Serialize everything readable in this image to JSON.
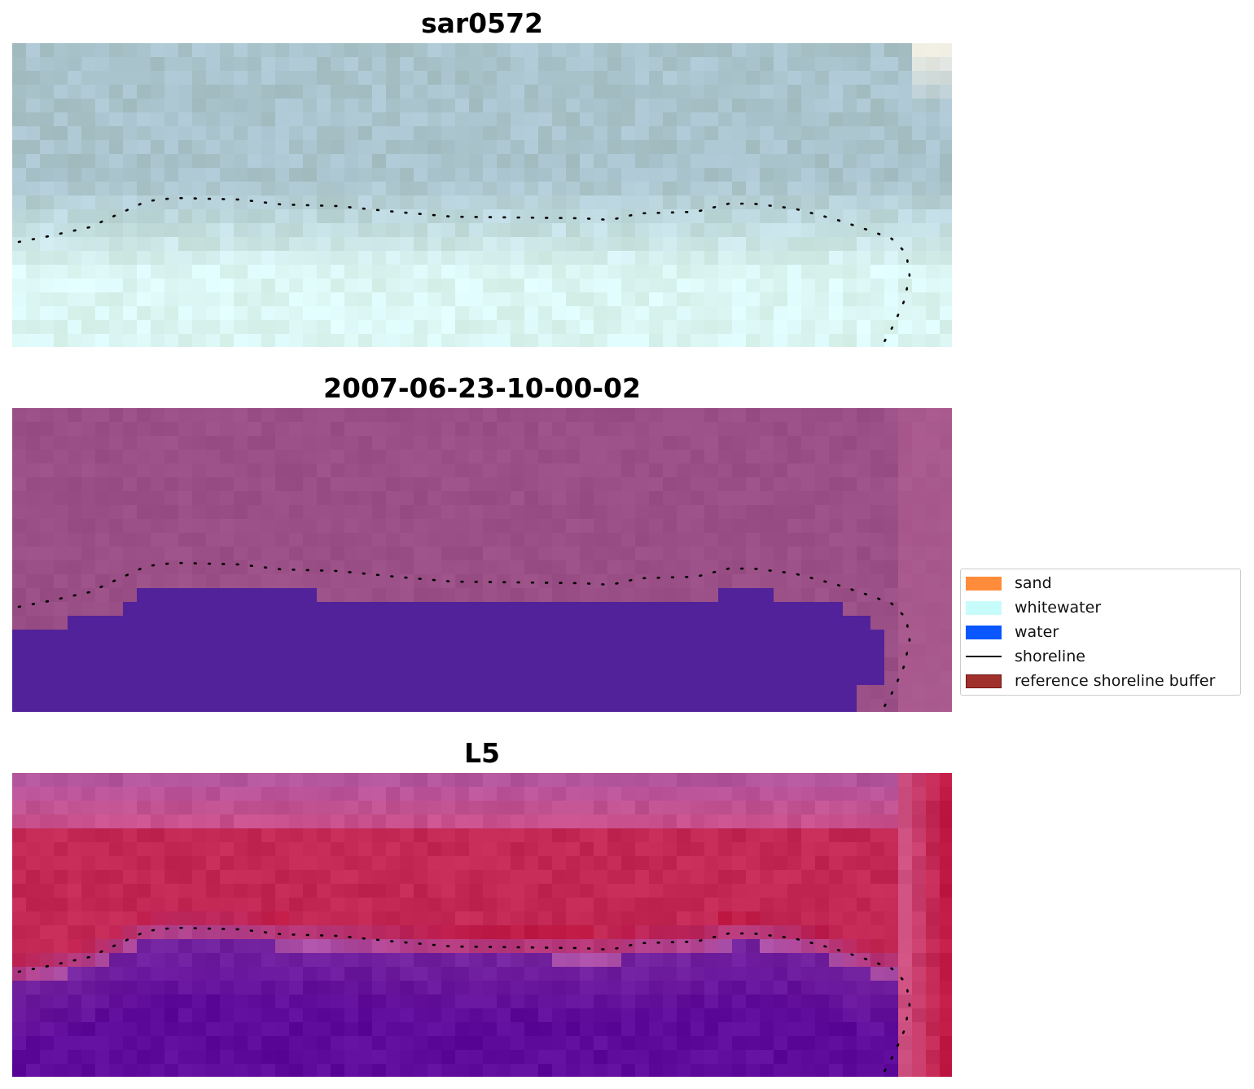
{
  "figure": {
    "panels": [
      {
        "title": "sar0572",
        "kind": "rgb"
      },
      {
        "title": "2007-06-23-10-00-02",
        "kind": "classified"
      },
      {
        "title": "L5",
        "kind": "index"
      }
    ]
  },
  "legend": {
    "items": [
      {
        "label": "sand",
        "type": "patch",
        "color": "#ff8c3a",
        "edge": "#ff8c3a"
      },
      {
        "label": "whitewater",
        "type": "patch",
        "color": "#c8fcfb",
        "edge": "#c8fcfb"
      },
      {
        "label": "water",
        "type": "patch",
        "color": "#0a56ff",
        "edge": "#0a56ff"
      },
      {
        "label": "shoreline",
        "type": "line",
        "color": "#000000"
      },
      {
        "label": "reference shoreline buffer",
        "type": "patch",
        "color": "#a0302c",
        "edge": "#6e1512"
      }
    ]
  },
  "colors": {
    "rgb_sky": "#a9c3cc",
    "rgb_surf": "#dbf6f3",
    "classified_background": "#9a4f86",
    "classified_water": "#52229a",
    "index_high": "#c11a44",
    "index_low": "#5e0a9a"
  }
}
